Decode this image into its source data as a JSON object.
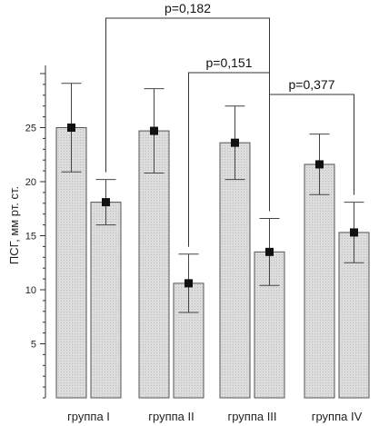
{
  "chart_data": {
    "type": "bar",
    "ylabel": "ПСГ, мм рт. ст.",
    "ylim": [
      0,
      30
    ],
    "yticks": [
      5,
      10,
      15,
      20,
      25
    ],
    "categories": [
      "группа I",
      "группа II",
      "группа III",
      "группа IV"
    ],
    "series": [
      {
        "values": [
          25.0,
          24.7,
          23.6,
          21.6
        ],
        "err": [
          4.1,
          3.9,
          3.4,
          2.8
        ]
      },
      {
        "values": [
          18.1,
          10.6,
          13.5,
          15.3
        ],
        "err": [
          2.1,
          2.7,
          3.1,
          2.8
        ]
      }
    ],
    "annotations": [
      {
        "text": "p=0,182",
        "from": [
          0,
          1
        ],
        "to": [
          2,
          1
        ]
      },
      {
        "text": "p=0,151",
        "from": [
          1,
          1
        ],
        "to": [
          2,
          1
        ]
      },
      {
        "text": "p=0,377",
        "from": [
          2,
          1
        ],
        "to": [
          3,
          1
        ]
      }
    ],
    "colors": {
      "bar_fill": "#dcdcdc",
      "bar_stroke": "#555555",
      "marker": "#111111"
    }
  }
}
